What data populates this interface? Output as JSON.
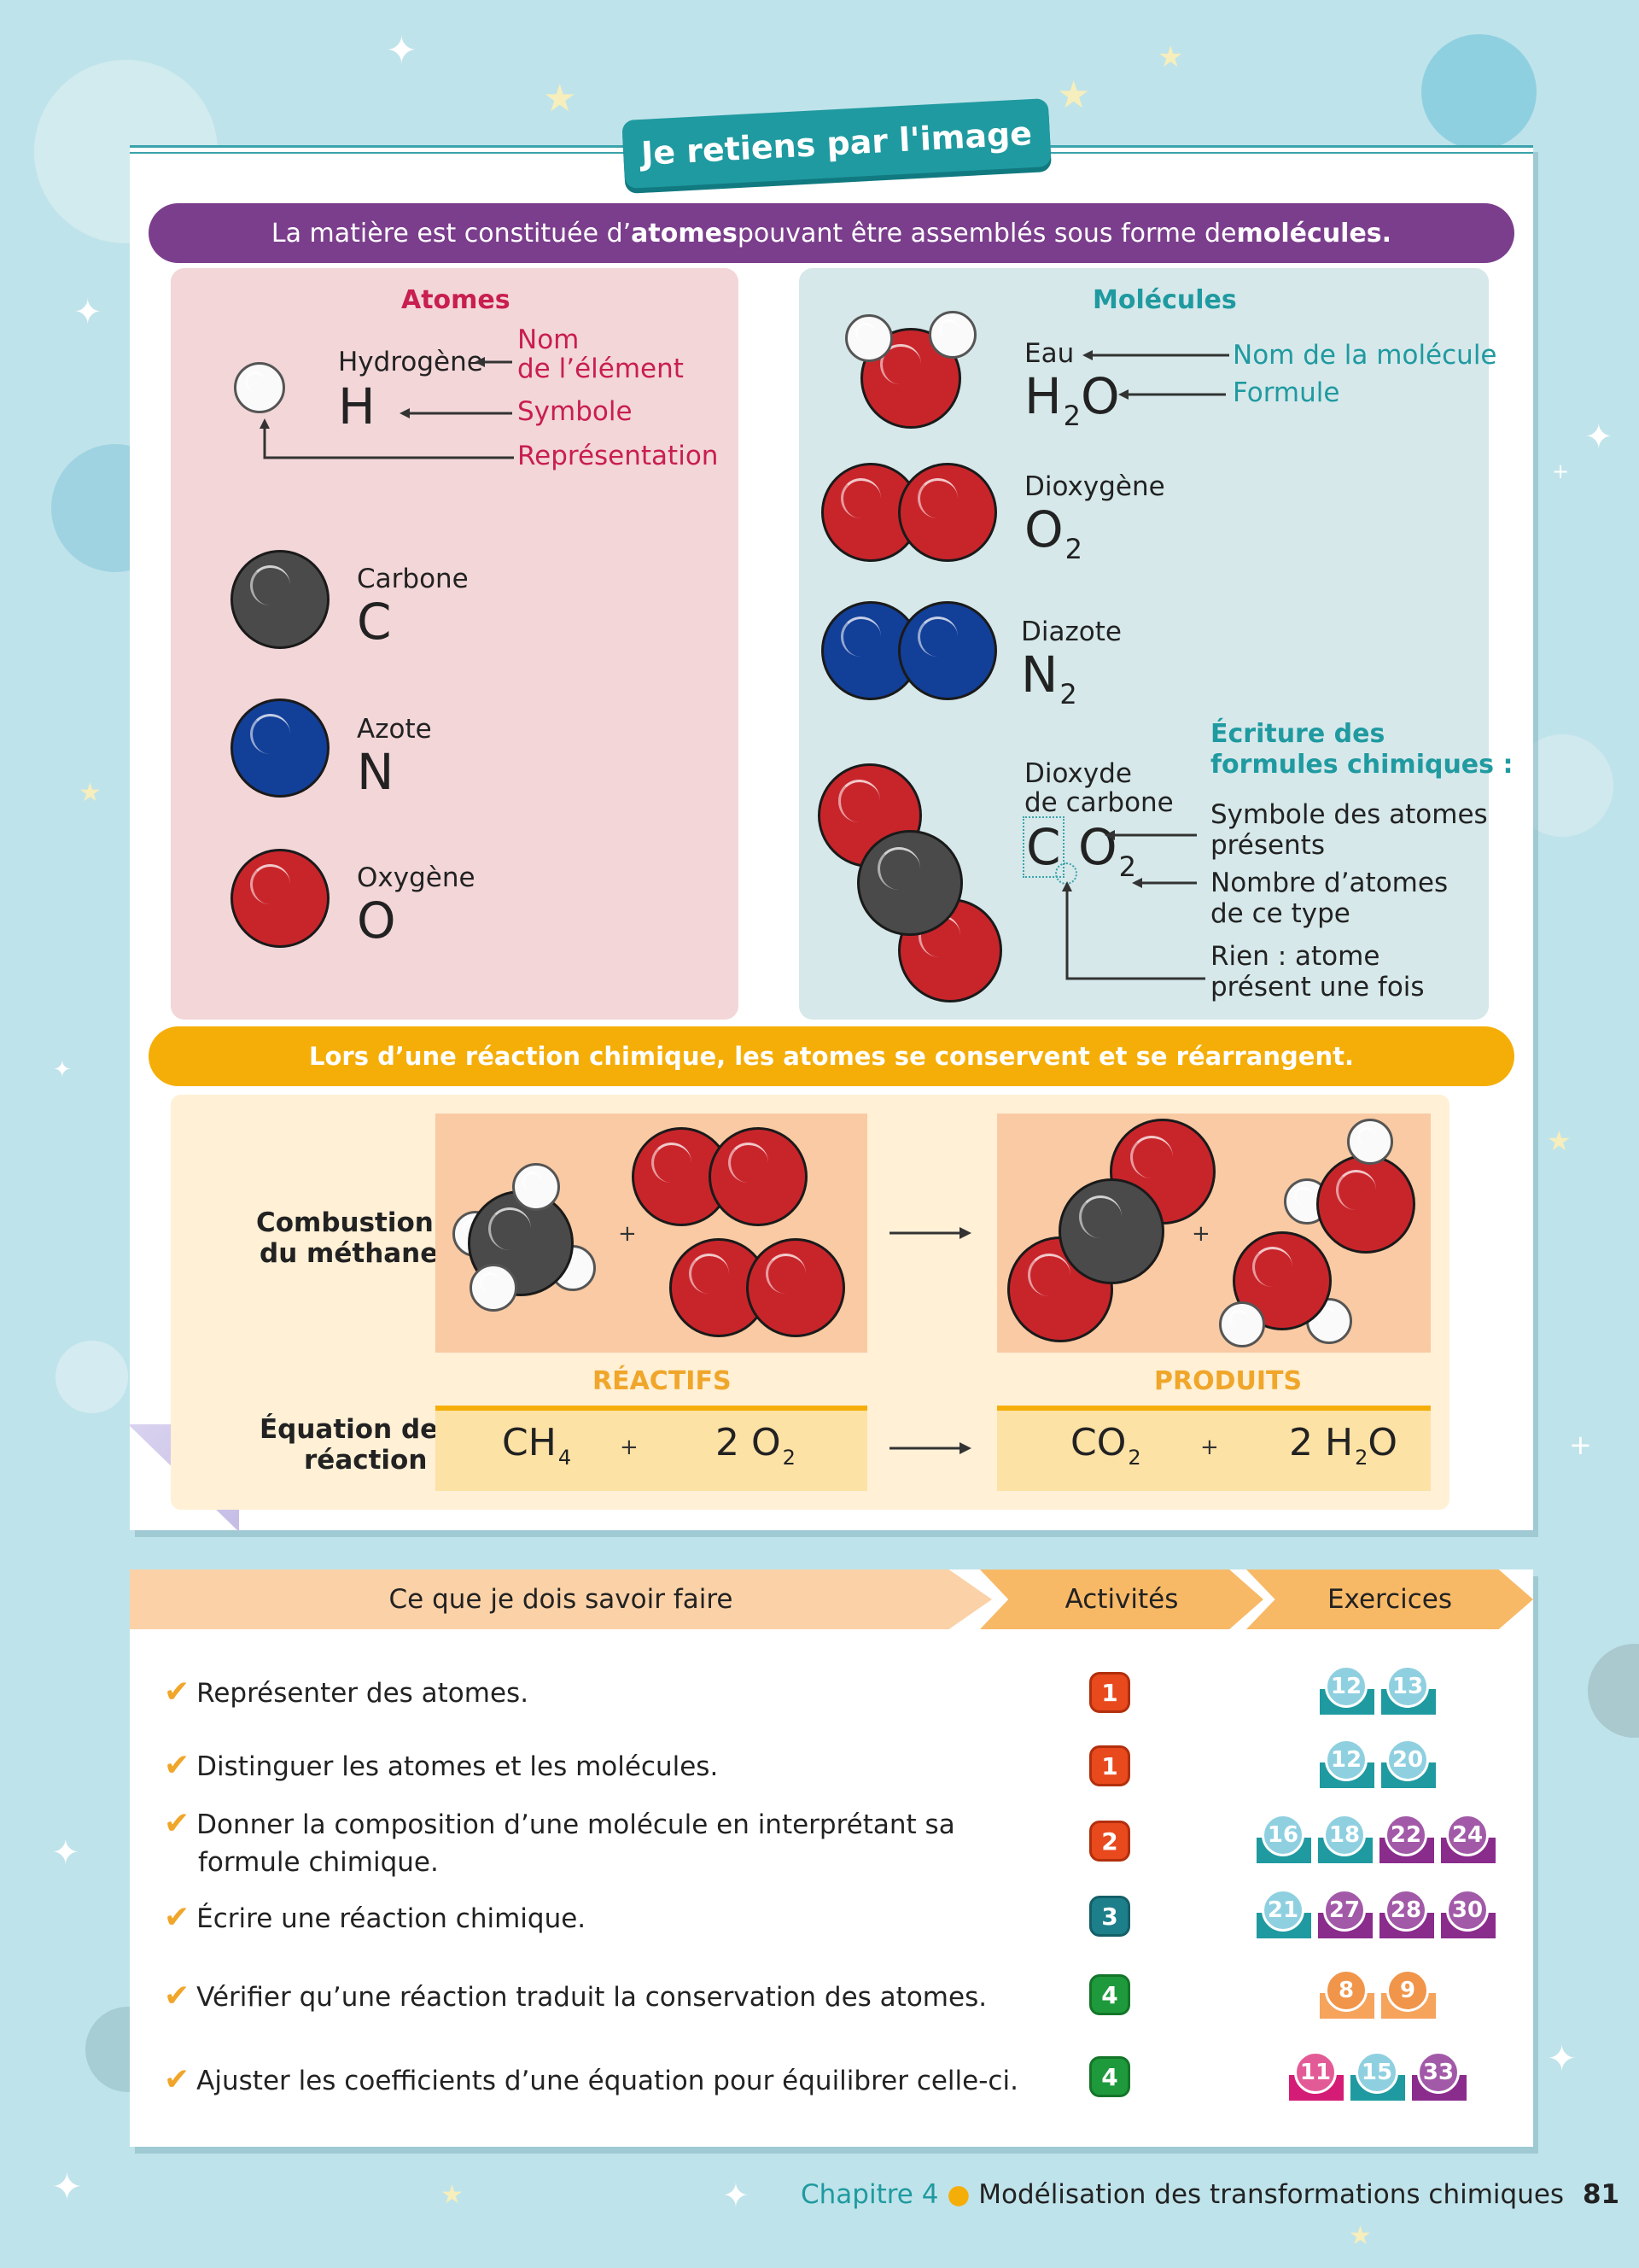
{
  "header": {
    "title": "Je retiens par l'image"
  },
  "banner1": {
    "pre": "La matière est constituée d’",
    "bold1": "atomes",
    "mid": " pouvant être assemblés sous forme de ",
    "bold2": "molécules",
    "post": "."
  },
  "atoms": {
    "heading": "Atomes",
    "legend": {
      "name_1": "Nom",
      "name_2": "de l’élément",
      "symbol": "Symbole",
      "representation": "Représentation"
    },
    "items": [
      {
        "name": "Hydrogène",
        "symbol": "H"
      },
      {
        "name": "Carbone",
        "symbol": "C"
      },
      {
        "name": "Azote",
        "symbol": "N"
      },
      {
        "name": "Oxygène",
        "symbol": "O"
      }
    ]
  },
  "molecules": {
    "heading": "Molécules",
    "legend": {
      "name": "Nom de la molécule",
      "formula": "Formule"
    },
    "items": [
      {
        "name": "Eau",
        "formula": "H",
        "sub": "2",
        "formula2": "O"
      },
      {
        "name": "Dioxygène",
        "formula": "O",
        "sub": "2"
      },
      {
        "name": "Diazote",
        "formula": "N",
        "sub": "2"
      },
      {
        "name_1": "Dioxyde",
        "name_2": "de carbone",
        "formula_c": "C",
        "formula_o": "O",
        "sub": "2"
      }
    ],
    "writing": {
      "title_1": "Écriture des",
      "title_2": "formules chimiques :",
      "a1": "Symbole des atomes",
      "a2": "présents",
      "b1": "Nombre d’atomes",
      "b2": "de ce type",
      "c1": "Rien : atome",
      "c2": "présent une fois"
    }
  },
  "banner2": {
    "text": "Lors d’une réaction chimique, les atomes se conservent et se réarrangent."
  },
  "reaction": {
    "combustion_1": "Combustion",
    "combustion_2": "du méthane",
    "equation_1": "Équation de",
    "equation_2": "réaction",
    "reactifs": "RÉACTIFS",
    "produits": "PRODUITS",
    "plus": "+",
    "eq": {
      "r1": "CH",
      "r1s": "4",
      "r2": "2 O",
      "r2s": "2",
      "p1": "CO",
      "p1s": "2",
      "p2a": "2 H",
      "p2s": "2",
      "p2b": "O"
    }
  },
  "skills": {
    "headers": {
      "skills": "Ce que je dois savoir faire",
      "activities": "Activités",
      "exercises": "Exercices"
    },
    "rows": [
      {
        "text": "Représenter des atomes.",
        "activity": "1",
        "exercises": [
          "12",
          "13"
        ]
      },
      {
        "text": "Distinguer les atomes et les molécules.",
        "activity": "1",
        "exercises": [
          "12",
          "20"
        ]
      },
      {
        "text_1": "Donner la composition d’une molécule en interprétant sa",
        "text_2": "formule chimique.",
        "activity": "2",
        "exercises": [
          "16",
          "18",
          "22",
          "24"
        ]
      },
      {
        "text": "Écrire une réaction chimique.",
        "activity": "3",
        "exercises": [
          "21",
          "27",
          "28",
          "30"
        ]
      },
      {
        "text": "Vérifier qu’une réaction traduit la conservation des atomes.",
        "activity": "4",
        "exercises": [
          "8",
          "9"
        ]
      },
      {
        "text": "Ajuster les coefficients d’une équation pour équilibrer celle-ci.",
        "activity": "4",
        "exercises": [
          "11",
          "15",
          "33"
        ]
      }
    ]
  },
  "footer": {
    "chapter": "Chapitre 4",
    "title": "Modélisation des transformations chimiques",
    "page": "81"
  },
  "colors": {
    "teal": "#1f9aa0",
    "purple": "#7b3e8c",
    "orange": "#f5ae08",
    "crimson": "#c81e50"
  }
}
